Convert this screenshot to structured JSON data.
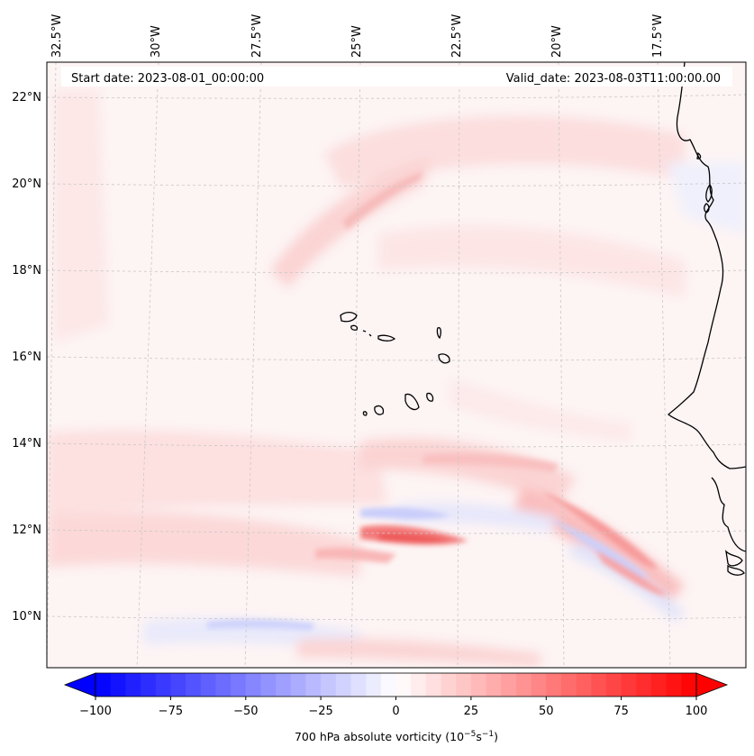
{
  "header": {
    "start_date": "Start date: 2023-08-01_00:00:00",
    "valid_date": "Valid_date: 2023-08-03T11:00:00.00"
  },
  "longitude_labels": [
    "32.5°W",
    "30°W",
    "27.5°W",
    "25°W",
    "22.5°W",
    "20°W",
    "17.5°W"
  ],
  "latitude_labels": [
    "22°N",
    "20°N",
    "18°N",
    "16°N",
    "14°N",
    "12°N",
    "10°N"
  ],
  "colorbar": {
    "ticks": [
      "−100",
      "−75",
      "−50",
      "−25",
      "0",
      "25",
      "50",
      "75",
      "100"
    ],
    "label": "700 hPa absolute vorticity (10",
    "label_exp1": "−5",
    "label_mid": "s",
    "label_exp2": "−1",
    "label_close": ")",
    "min": -100,
    "max": 100,
    "levels": 40,
    "colors": {
      "negative": "#0000ff",
      "zero": "#ffffff",
      "positive": "#ff0000"
    }
  },
  "colors": {
    "coast": "#000000",
    "grid": "#c8c8c8"
  }
}
